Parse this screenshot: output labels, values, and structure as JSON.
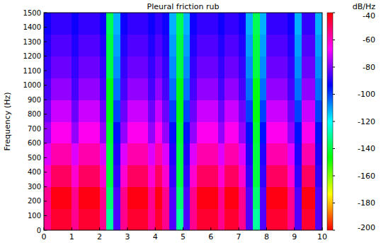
{
  "chart_data": {
    "type": "heatmap",
    "title": "Pleural friction rub",
    "ylabel": "Frequency (Hz)",
    "xlim": [
      0,
      10
    ],
    "xticks": [
      0,
      1,
      2,
      3,
      4,
      5,
      6,
      7,
      8,
      9,
      10
    ],
    "ylim": [
      0,
      1500
    ],
    "yticks": [
      0,
      100,
      200,
      300,
      400,
      500,
      600,
      700,
      800,
      900,
      1000,
      1100,
      1200,
      1300,
      1400,
      1500
    ],
    "heatmap": {
      "x_bins": [
        0,
        0.25,
        0.5,
        0.75,
        1,
        1.25,
        1.5,
        1.75,
        2,
        2.25,
        2.5,
        2.75,
        3,
        3.25,
        3.5,
        3.75,
        4,
        4.25,
        4.5,
        4.75,
        5,
        5.25,
        5.5,
        5.75,
        6,
        6.25,
        6.5,
        6.75,
        7,
        7.25,
        7.5,
        7.75,
        8,
        8.25,
        8.5,
        8.75,
        9,
        9.25,
        9.5,
        9.75,
        10
      ],
      "y_bins": [
        0,
        150,
        300,
        450,
        600,
        750,
        900,
        1050,
        1200,
        1350,
        1500
      ],
      "values": [
        [
          -55,
          -45,
          -45,
          -45,
          -55,
          -45,
          -45,
          -45,
          -55,
          -130,
          -85,
          -55,
          -45,
          -45,
          -45,
          -55,
          -45,
          -55,
          -85,
          -130,
          -85,
          -55,
          -45,
          -45,
          -45,
          -55,
          -45,
          -45,
          -55,
          -85,
          -130,
          -85,
          -45,
          -45,
          -45,
          -55,
          -85,
          -45,
          -45,
          -85
        ],
        [
          -55,
          -42,
          -42,
          -42,
          -55,
          -42,
          -42,
          -42,
          -55,
          -135,
          -85,
          -55,
          -42,
          -42,
          -42,
          -55,
          -42,
          -55,
          -85,
          -135,
          -85,
          -55,
          -42,
          -42,
          -42,
          -55,
          -42,
          -42,
          -55,
          -85,
          -135,
          -85,
          -42,
          -42,
          -42,
          -55,
          -85,
          -42,
          -42,
          -85
        ],
        [
          -62,
          -50,
          -50,
          -50,
          -62,
          -50,
          -50,
          -50,
          -62,
          -140,
          -88,
          -62,
          -50,
          -50,
          -50,
          -62,
          -50,
          -62,
          -88,
          -140,
          -88,
          -62,
          -50,
          -50,
          -50,
          -62,
          -50,
          -50,
          -62,
          -88,
          -140,
          -88,
          -50,
          -50,
          -50,
          -62,
          -88,
          -50,
          -50,
          -88
        ],
        [
          -70,
          -58,
          -58,
          -58,
          -70,
          -58,
          -58,
          -58,
          -70,
          -140,
          -90,
          -70,
          -58,
          -58,
          -58,
          -70,
          -58,
          -70,
          -90,
          -140,
          -90,
          -70,
          -58,
          -58,
          -58,
          -70,
          -58,
          -58,
          -70,
          -90,
          -140,
          -90,
          -58,
          -58,
          -58,
          -70,
          -90,
          -58,
          -58,
          -90
        ],
        [
          -78,
          -65,
          -65,
          -65,
          -78,
          -65,
          -65,
          -65,
          -78,
          -142,
          -95,
          -78,
          -65,
          -65,
          -65,
          -78,
          -65,
          -78,
          -95,
          -142,
          -95,
          -78,
          -65,
          -65,
          -65,
          -78,
          -65,
          -65,
          -78,
          -95,
          -142,
          -95,
          -65,
          -65,
          -65,
          -78,
          -95,
          -65,
          -65,
          -95
        ],
        [
          -82,
          -72,
          -72,
          -72,
          -82,
          -72,
          -72,
          -72,
          -82,
          -145,
          -100,
          -82,
          -72,
          -72,
          -72,
          -82,
          -72,
          -82,
          -100,
          -145,
          -100,
          -82,
          -72,
          -72,
          -72,
          -82,
          -72,
          -72,
          -82,
          -100,
          -145,
          -100,
          -72,
          -72,
          -72,
          -82,
          -100,
          -72,
          -72,
          -100
        ],
        [
          -86,
          -78,
          -78,
          -78,
          -86,
          -78,
          -78,
          -78,
          -86,
          -145,
          -105,
          -86,
          -78,
          -78,
          -78,
          -86,
          -78,
          -86,
          -105,
          -145,
          -105,
          -86,
          -78,
          -78,
          -78,
          -86,
          -78,
          -78,
          -86,
          -105,
          -145,
          -105,
          -78,
          -78,
          -78,
          -86,
          -105,
          -78,
          -78,
          -105
        ],
        [
          -88,
          -82,
          -82,
          -82,
          -88,
          -82,
          -82,
          -82,
          -88,
          -140,
          -108,
          -88,
          -82,
          -82,
          -82,
          -88,
          -82,
          -88,
          -108,
          -140,
          -108,
          -88,
          -82,
          -82,
          -82,
          -88,
          -82,
          -82,
          -88,
          -108,
          -140,
          -108,
          -82,
          -82,
          -82,
          -88,
          -108,
          -82,
          -82,
          -108
        ],
        [
          -90,
          -85,
          -85,
          -85,
          -90,
          -85,
          -85,
          -85,
          -90,
          -140,
          -110,
          -90,
          -85,
          -85,
          -85,
          -90,
          -85,
          -90,
          -110,
          -140,
          -110,
          -90,
          -85,
          -85,
          -85,
          -90,
          -85,
          -85,
          -90,
          -110,
          -140,
          -110,
          -85,
          -85,
          -85,
          -90,
          -110,
          -85,
          -85,
          -110
        ],
        [
          -92,
          -88,
          -88,
          -88,
          -92,
          -88,
          -88,
          -88,
          -92,
          -138,
          -112,
          -92,
          -88,
          -88,
          -88,
          -92,
          -88,
          -92,
          -112,
          -138,
          -112,
          -92,
          -88,
          -88,
          -88,
          -92,
          -88,
          -88,
          -92,
          -112,
          -138,
          -112,
          -88,
          -88,
          -88,
          -92,
          -112,
          -88,
          -88,
          -112
        ]
      ]
    },
    "colorbar": {
      "label": "dB/Hz",
      "range": [
        -200,
        -40
      ],
      "ticks": [
        -40,
        -60,
        -80,
        -100,
        -120,
        -140,
        -160,
        -180,
        -200
      ]
    }
  }
}
